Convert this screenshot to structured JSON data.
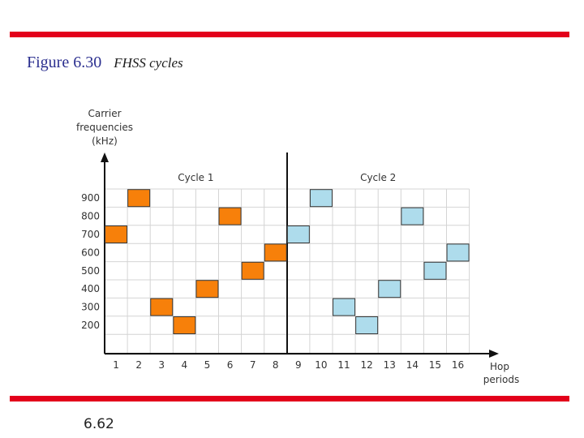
{
  "figure": {
    "number": "Figure 6.30",
    "caption": "FHSS cycles"
  },
  "slide_number": "6.62",
  "chart_data": {
    "type": "scatter",
    "ylabel_lines": [
      "Carrier",
      "frequencies",
      "(kHz)"
    ],
    "xlabel_lines": [
      "Hop",
      "periods"
    ],
    "y_ticks": [
      "900",
      "800",
      "700",
      "600",
      "500",
      "400",
      "300",
      "200"
    ],
    "x_ticks": [
      "1",
      "2",
      "3",
      "4",
      "5",
      "6",
      "7",
      "8",
      "9",
      "10",
      "11",
      "12",
      "13",
      "14",
      "15",
      "16"
    ],
    "grid": true,
    "cycles": [
      {
        "name": "Cycle 1",
        "color": "#f7800a",
        "hops": [
          1,
          2,
          3,
          4,
          5,
          6,
          7,
          8
        ],
        "frequencies": [
          700,
          900,
          300,
          200,
          400,
          800,
          500,
          600
        ]
      },
      {
        "name": "Cycle 2",
        "color": "#aedcec",
        "hops": [
          9,
          10,
          11,
          12,
          13,
          14,
          15,
          16
        ],
        "frequencies": [
          700,
          900,
          300,
          200,
          400,
          800,
          500,
          600
        ]
      }
    ],
    "divider_between_hops": [
      8,
      9
    ]
  }
}
